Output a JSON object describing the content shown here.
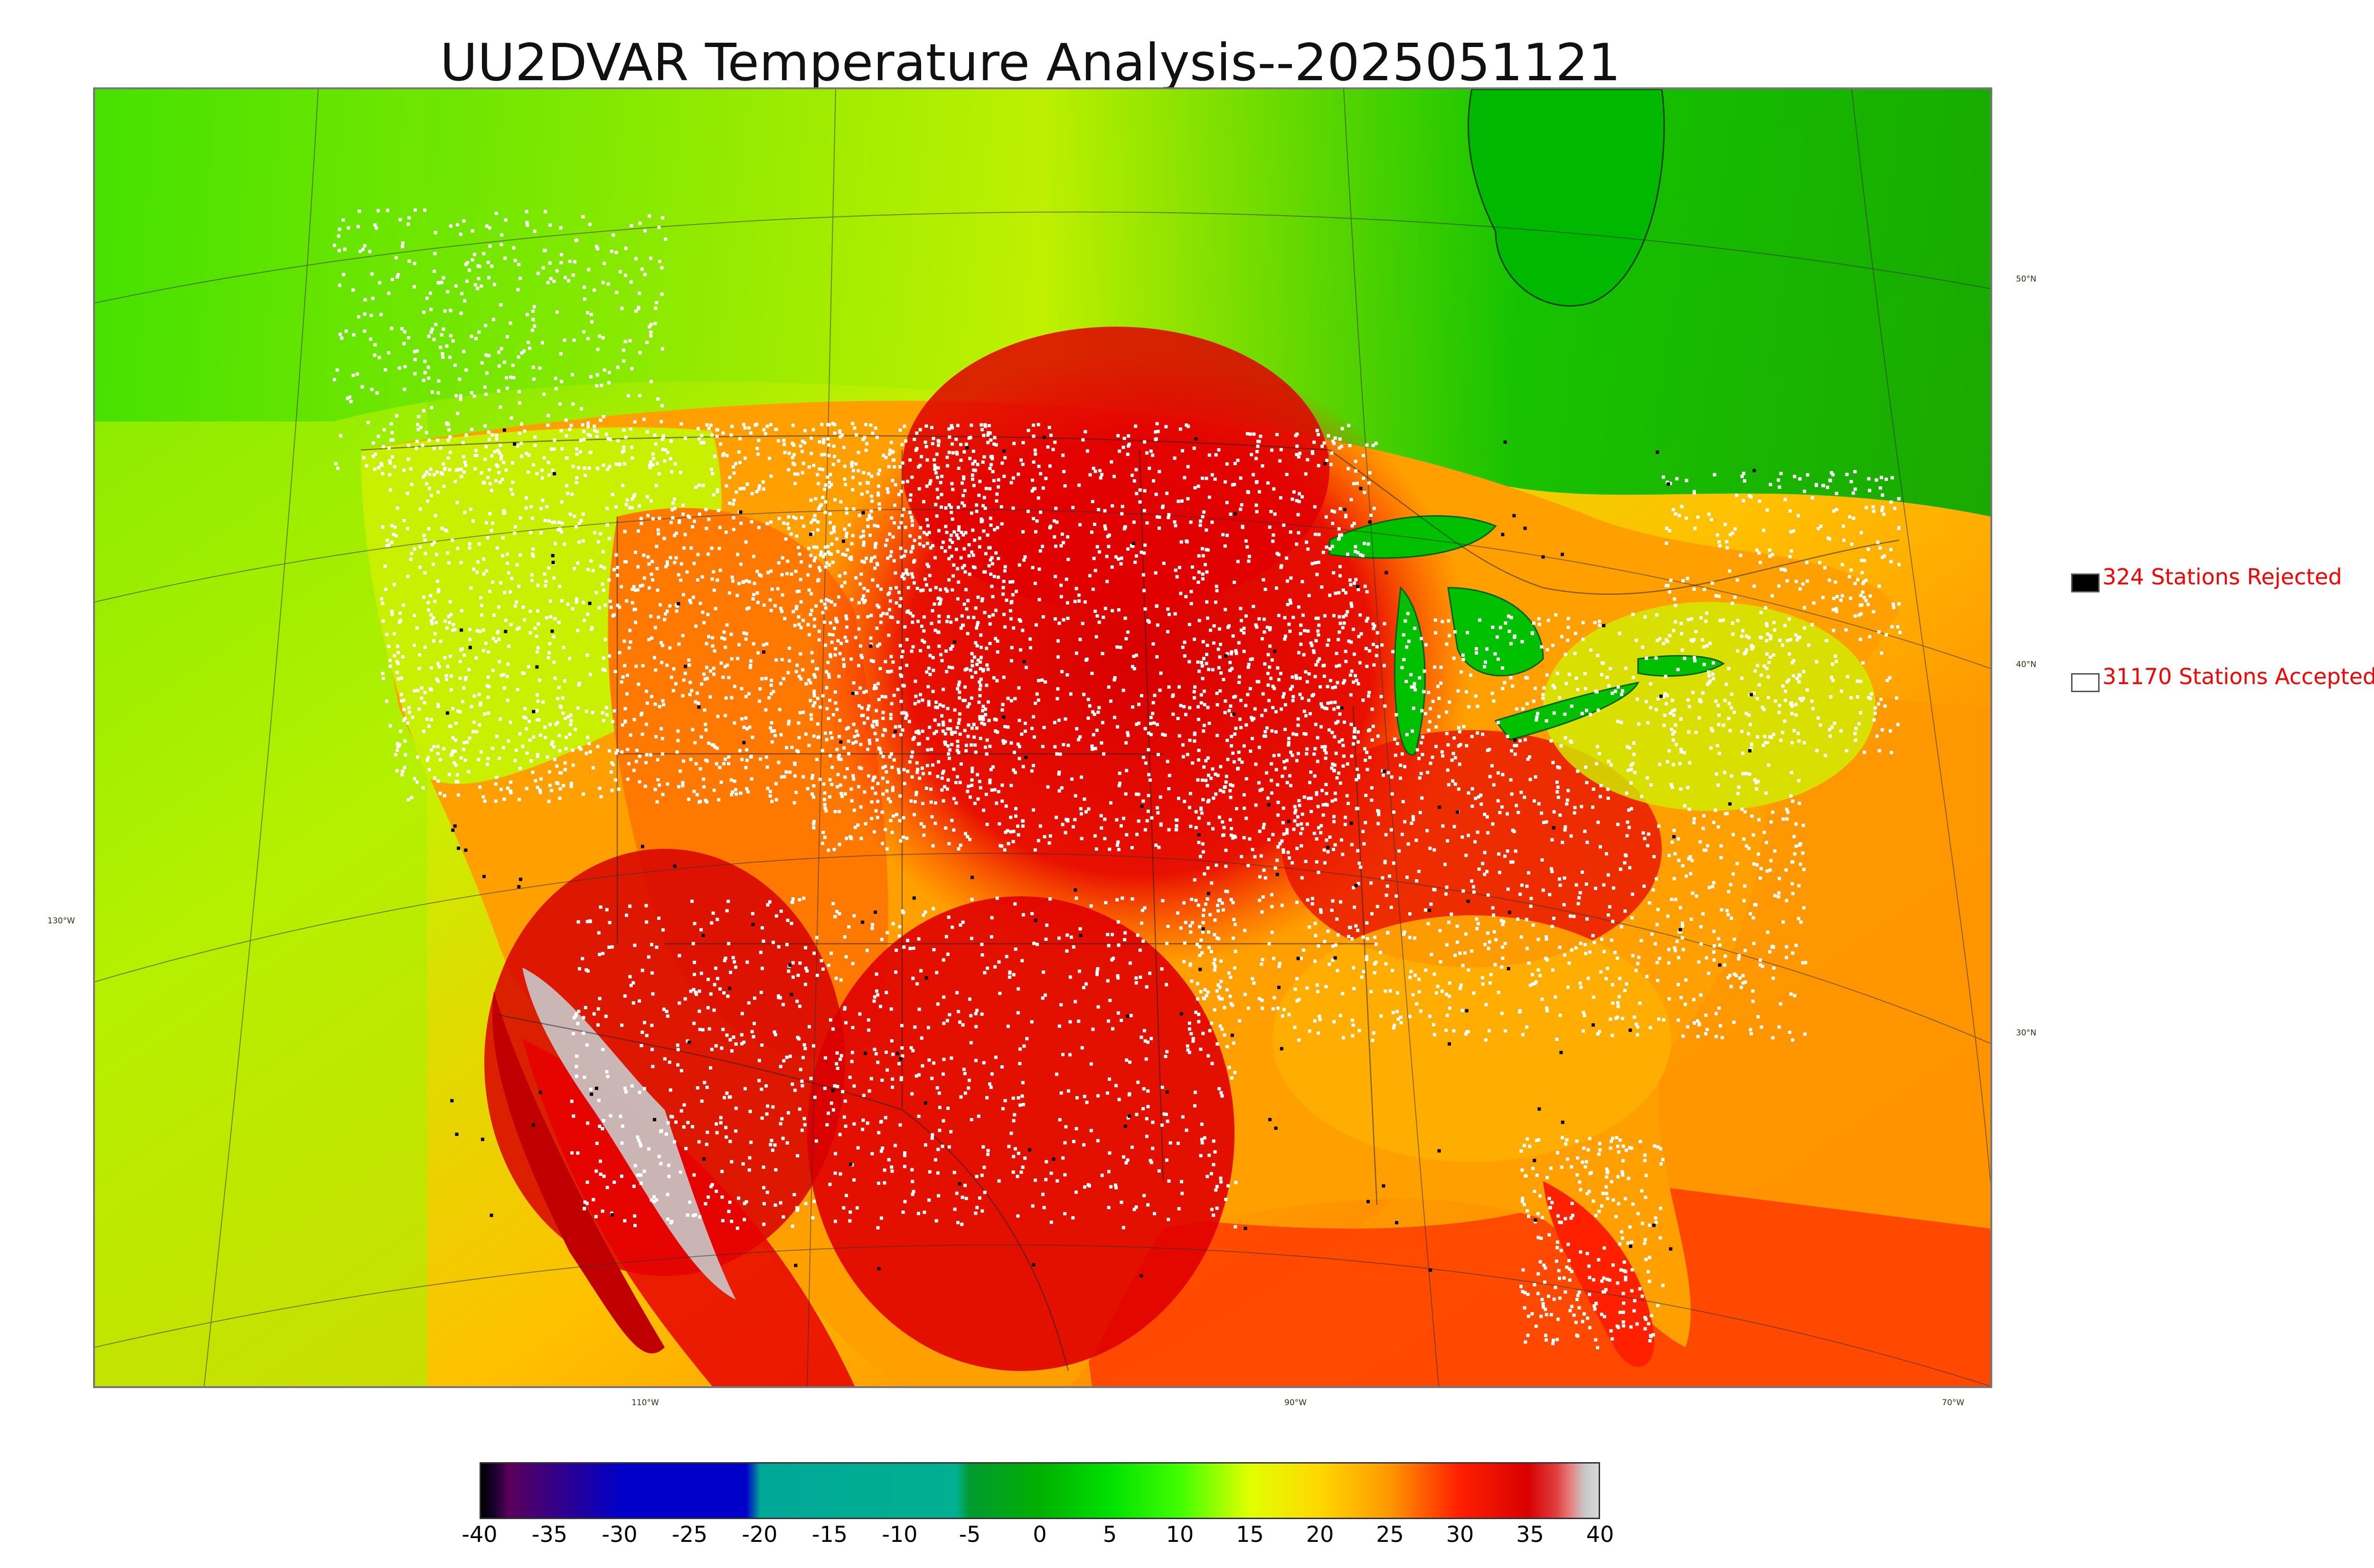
{
  "title": "UU2DVAR Temperature Analysis--2025051121",
  "legend": {
    "rejected": {
      "label": "324 Stations Rejected",
      "swatch_color": "#000000"
    },
    "accepted": {
      "label": "31170 Stations Accepted",
      "swatch_color": "#ffffff"
    }
  },
  "lat_labels": [
    "50°N",
    "40°N",
    "30°N"
  ],
  "lon_labels": [
    "130°W",
    "110°W",
    "90°W",
    "70°W"
  ],
  "colorbar": {
    "ticks": [
      "-40",
      "-35",
      "-30",
      "-25",
      "-20",
      "-15",
      "-10",
      "-5",
      "0",
      "5",
      "10",
      "15",
      "20",
      "25",
      "30",
      "35",
      "40"
    ],
    "range": [
      -40,
      40
    ],
    "stops": [
      {
        "value": -40,
        "color": "#000000"
      },
      {
        "value": -39,
        "color": "#1a0030"
      },
      {
        "value": -38,
        "color": "#5a005a"
      },
      {
        "value": -30,
        "color": "#0000c8"
      },
      {
        "value": -21,
        "color": "#0000c8"
      },
      {
        "value": -20,
        "color": "#00a898"
      },
      {
        "value": -6,
        "color": "#00b090"
      },
      {
        "value": -5,
        "color": "#009a30"
      },
      {
        "value": 0,
        "color": "#00b000"
      },
      {
        "value": 5,
        "color": "#00e000"
      },
      {
        "value": 10,
        "color": "#40ff00"
      },
      {
        "value": 15,
        "color": "#e0ff00"
      },
      {
        "value": 20,
        "color": "#ffd800"
      },
      {
        "value": 25,
        "color": "#ff9800"
      },
      {
        "value": 30,
        "color": "#ff2000"
      },
      {
        "value": 35,
        "color": "#d80000"
      },
      {
        "value": 37,
        "color": "#e04040"
      },
      {
        "value": 38,
        "color": "#e88080"
      },
      {
        "value": 39,
        "color": "#c8c8c8"
      },
      {
        "value": 40,
        "color": "#d8d8d8"
      }
    ]
  },
  "colors": {
    "ocean_west": "#b8f000",
    "ocean_southeast": "#ff9000",
    "canada": "#00d000",
    "hot": "#e00000",
    "warm": "#ff6a00",
    "mild": "#ffd000",
    "cool": "#40e000",
    "mountain_snow": "#cccccc",
    "lake": "#00b800",
    "rejected_station": "#000000",
    "accepted_station": "#ffffff"
  }
}
